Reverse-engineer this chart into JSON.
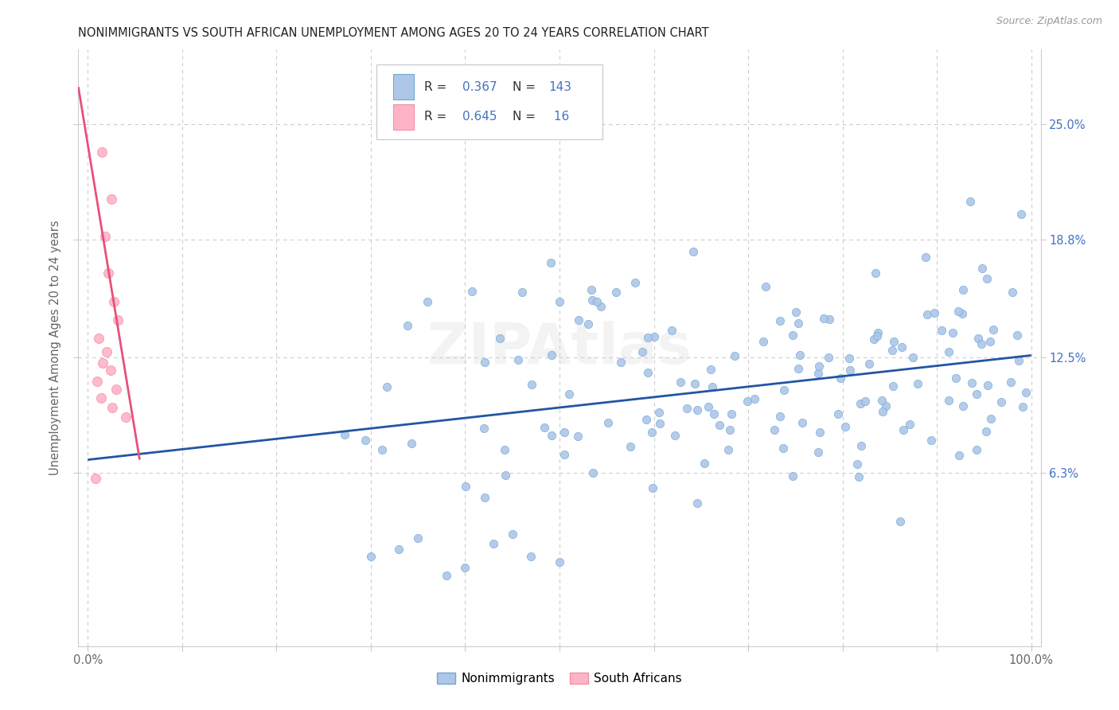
{
  "title": "NONIMMIGRANTS VS SOUTH AFRICAN UNEMPLOYMENT AMONG AGES 20 TO 24 YEARS CORRELATION CHART",
  "source": "Source: ZipAtlas.com",
  "ylabel": "Unemployment Among Ages 20 to 24 years",
  "ytick_labels": [
    "6.3%",
    "12.5%",
    "18.8%",
    "25.0%"
  ],
  "ytick_values": [
    0.063,
    0.125,
    0.188,
    0.25
  ],
  "xlim": [
    -0.01,
    1.01
  ],
  "ylim": [
    -0.03,
    0.29
  ],
  "nonimm_color": "#aec6e8",
  "nonimm_edge": "#6fa8d4",
  "sa_color": "#ffb3c6",
  "sa_edge": "#f090a8",
  "line_blue": "#2255a4",
  "line_pink": "#e8507a",
  "title_color": "#222222",
  "axis_label_color": "#666666",
  "ytick_color": "#4472c4",
  "xtick_color": "#666666",
  "grid_color": "#cccccc",
  "background": "#ffffff",
  "legend_r_color": "#4472c4",
  "legend_n_color": "#4472c4",
  "legend_label_color": "#333333",
  "sa_scatter_x": [
    0.015,
    0.025,
    0.018,
    0.022,
    0.028,
    0.032,
    0.012,
    0.02,
    0.016,
    0.024,
    0.01,
    0.03,
    0.014,
    0.026,
    0.008,
    0.04
  ],
  "sa_scatter_y": [
    0.235,
    0.21,
    0.19,
    0.17,
    0.155,
    0.145,
    0.135,
    0.128,
    0.122,
    0.118,
    0.112,
    0.108,
    0.103,
    0.098,
    0.06,
    0.093
  ],
  "nonimm_line_x": [
    0.0,
    1.0
  ],
  "nonimm_line_y": [
    0.07,
    0.126
  ],
  "sa_line_x": [
    -0.01,
    0.055
  ],
  "sa_line_y": [
    0.27,
    0.07
  ]
}
